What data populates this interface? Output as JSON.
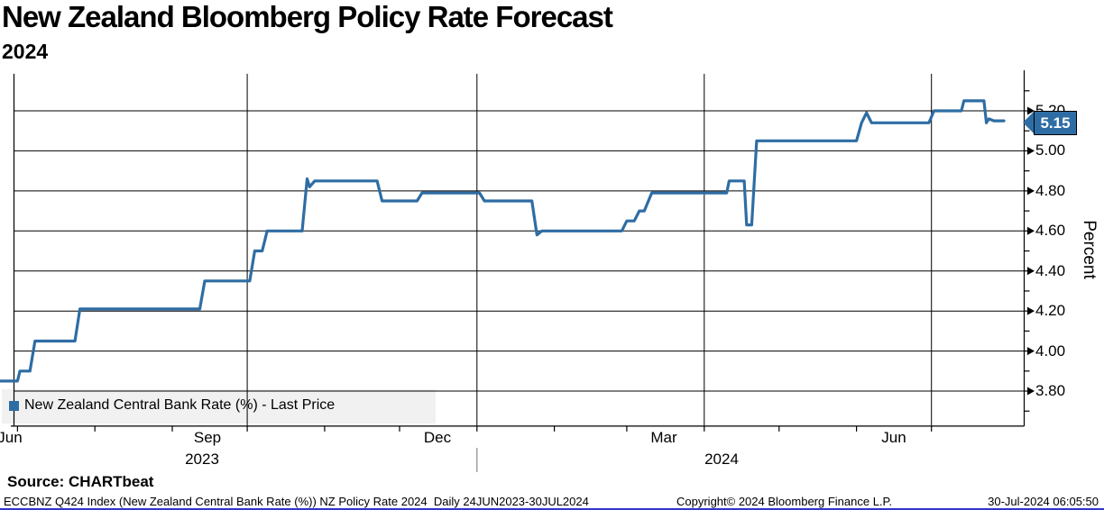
{
  "header": {
    "title": "New Zealand Bloomberg Policy Rate Forecast",
    "subtitle": "2024"
  },
  "legend": {
    "swatch_color": "#2e6da4",
    "label": "New Zealand Central Bank Rate (%) - Last Price"
  },
  "last_price_tag": {
    "value": "5.15"
  },
  "y_axis": {
    "title": "Percent"
  },
  "source_line": "Source: CHARTbeat",
  "footer": {
    "index_info": "ECCBNZ Q424 Index (New Zealand Central Bank Rate (%)) NZ Policy Rate 2024  Daily 24JUN2023-30JUL2024",
    "copyright": "Copyright© 2024 Bloomberg Finance L.P.",
    "timestamp": "30-Jul-2024 06:05:50"
  },
  "chart_data": {
    "type": "line",
    "title": "New Zealand Bloomberg Policy Rate Forecast 2024",
    "ylabel": "Percent",
    "grid": true,
    "legend_position": "bottom-left",
    "x_range": [
      "2023-06-24",
      "2024-07-30"
    ],
    "ylim": [
      3.625,
      5.385
    ],
    "yticks_major": [
      3.8,
      4.0,
      4.2,
      4.4,
      4.6,
      4.8,
      5.0,
      5.2
    ],
    "yticks_minor": [
      3.7,
      3.9,
      4.1,
      4.3,
      4.5,
      4.7,
      4.9,
      5.1,
      5.3
    ],
    "x_gridline_dates": [
      "2023-10-01",
      "2024-01-01",
      "2024-04-01",
      "2024-07-01"
    ],
    "x_month_tick_dates": [
      "2023-07-01",
      "2023-08-01",
      "2023-09-01",
      "2023-10-01",
      "2023-11-01",
      "2023-12-01",
      "2024-01-01",
      "2024-02-01",
      "2024-03-01",
      "2024-04-01",
      "2024-05-01",
      "2024-06-01",
      "2024-07-01"
    ],
    "x_month_labels": [
      {
        "label": "Jun",
        "x_date": "2023-06-28"
      },
      {
        "label": "Sep",
        "x_date": "2023-09-15"
      },
      {
        "label": "Dec",
        "x_date": "2023-12-16"
      },
      {
        "label": "Mar",
        "x_date": "2024-03-16"
      },
      {
        "label": "Jun",
        "x_date": "2024-06-16"
      }
    ],
    "x_year_labels": [
      {
        "label": "2023",
        "x_date": "2023-09-13"
      },
      {
        "label": "2024",
        "x_date": "2024-04-08"
      }
    ],
    "year_separator_date": "2024-01-01",
    "last_price": 5.15,
    "series": [
      {
        "name": "New Zealand Central Bank Rate (%) - Last Price",
        "color": "#2e6da4",
        "points": [
          [
            "2023-06-24",
            3.85
          ],
          [
            "2023-07-01",
            3.85
          ],
          [
            "2023-07-02",
            3.9
          ],
          [
            "2023-07-06",
            3.9
          ],
          [
            "2023-07-08",
            4.05
          ],
          [
            "2023-07-24",
            4.05
          ],
          [
            "2023-07-26",
            4.21
          ],
          [
            "2023-09-12",
            4.21
          ],
          [
            "2023-09-14",
            4.35
          ],
          [
            "2023-10-02",
            4.35
          ],
          [
            "2023-10-04",
            4.5
          ],
          [
            "2023-10-07",
            4.5
          ],
          [
            "2023-10-09",
            4.6
          ],
          [
            "2023-10-23",
            4.6
          ],
          [
            "2023-10-25",
            4.86
          ],
          [
            "2023-10-26",
            4.82
          ],
          [
            "2023-10-28",
            4.85
          ],
          [
            "2023-11-22",
            4.85
          ],
          [
            "2023-11-24",
            4.75
          ],
          [
            "2023-12-08",
            4.75
          ],
          [
            "2023-12-10",
            4.79
          ],
          [
            "2024-01-02",
            4.79
          ],
          [
            "2024-01-04",
            4.75
          ],
          [
            "2024-01-23",
            4.75
          ],
          [
            "2024-01-25",
            4.58
          ],
          [
            "2024-01-27",
            4.6
          ],
          [
            "2024-02-28",
            4.6
          ],
          [
            "2024-03-01",
            4.65
          ],
          [
            "2024-03-04",
            4.65
          ],
          [
            "2024-03-06",
            4.7
          ],
          [
            "2024-03-08",
            4.7
          ],
          [
            "2024-03-11",
            4.79
          ],
          [
            "2024-04-10",
            4.79
          ],
          [
            "2024-04-11",
            4.85
          ],
          [
            "2024-04-17",
            4.85
          ],
          [
            "2024-04-18",
            4.63
          ],
          [
            "2024-04-20",
            4.63
          ],
          [
            "2024-04-22",
            5.05
          ],
          [
            "2024-06-01",
            5.05
          ],
          [
            "2024-06-03",
            5.14
          ],
          [
            "2024-06-05",
            5.19
          ],
          [
            "2024-06-07",
            5.14
          ],
          [
            "2024-06-30",
            5.14
          ],
          [
            "2024-07-02",
            5.2
          ],
          [
            "2024-07-13",
            5.2
          ],
          [
            "2024-07-14",
            5.25
          ],
          [
            "2024-07-22",
            5.25
          ],
          [
            "2024-07-23",
            5.14
          ],
          [
            "2024-07-24",
            5.16
          ],
          [
            "2024-07-26",
            5.15
          ],
          [
            "2024-07-30",
            5.15
          ]
        ]
      }
    ]
  }
}
